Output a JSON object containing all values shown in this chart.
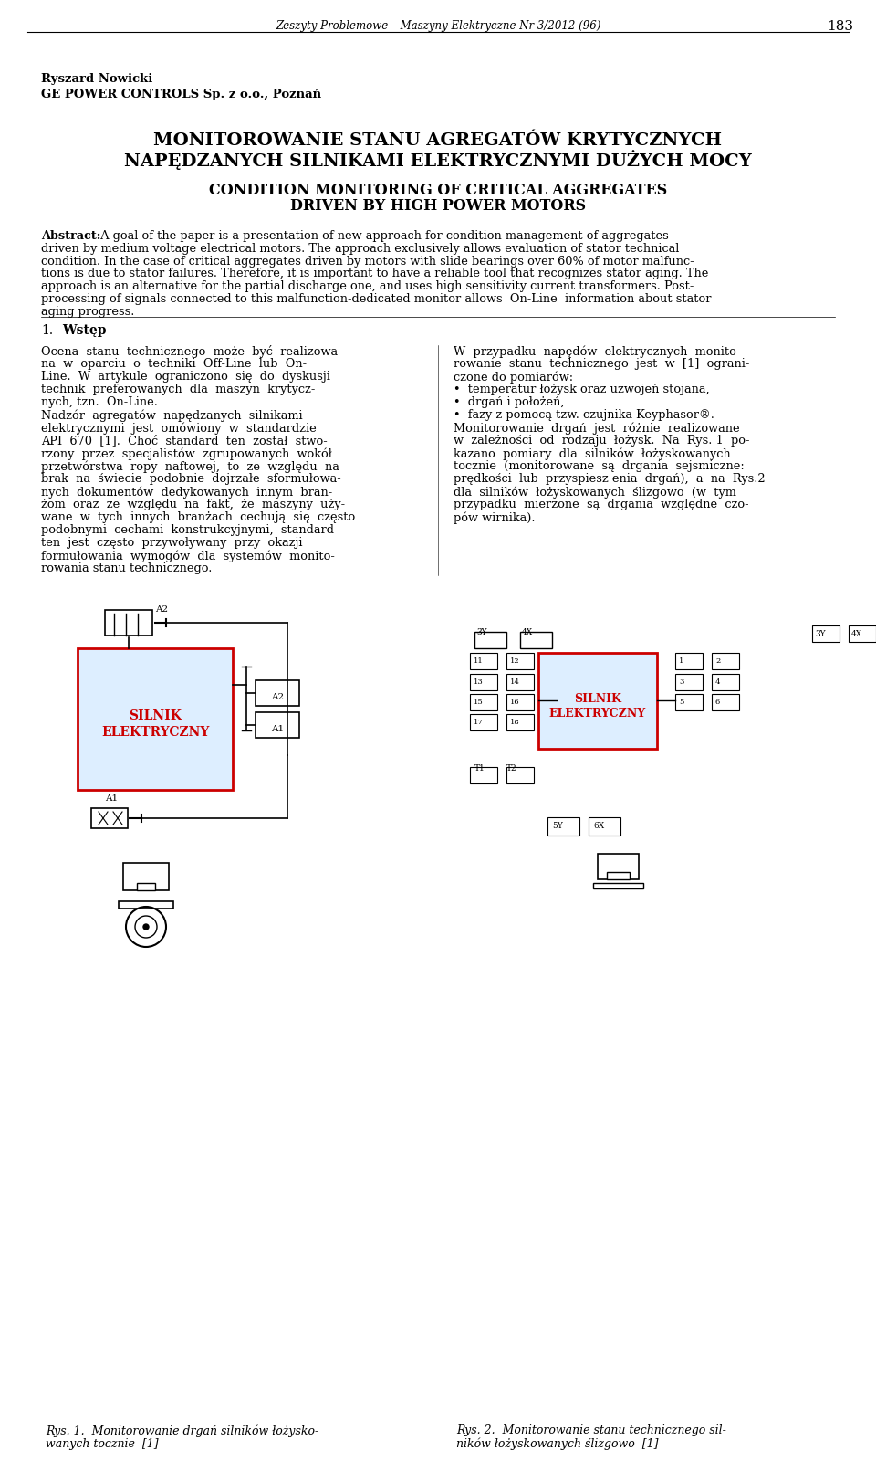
{
  "background_color": "#ffffff",
  "header_text": "Zeszyty Problemowe – Maszyny Elektryczne Nr 3/2012 (96)",
  "header_page": "183",
  "author_name": "Ryszard Nowicki",
  "author_affil": "GE POWER CONTROLS Sp. z o.o., Poznań",
  "title_pl_1": "MONITOROWANIE STANU AGREGATÓW KRYTYCZNYCH",
  "title_pl_2": "NAPĘDZANYCH SILNIKAMI ELEKTRYCZNYMI DUŻYCH MOCY",
  "title_en_1": "CONDITION MONITORING OF CRITICAL AGGREGATES",
  "title_en_2": "DRIVEN BY HIGH POWER MOTORS",
  "abs_line1": "Abstract:  A goal of the paper is a presentation of new approach for condition management of aggregates",
  "abs_line2": "driven by medium voltage electrical motors. The approach exclusively allows evaluation of stator technical",
  "abs_line3": "condition. In the case of critical aggregates driven by motors with slide bearings over 60% of motor malfunc-",
  "abs_line4": "tions is due to stator failures. Therefore, it is important to have a reliable tool that recognizes stator aging. The",
  "abs_line5": "approach is an alternative for the partial discharge one, and uses high sensitivity current transformers. Post-",
  "abs_line6": "processing of signals connected to this malfunction-dedicated monitor allows On-Line information about stator",
  "abs_line7": "aging progress.",
  "sec_heading": "1.   Wstęp",
  "col1_lines": [
    "Ocena  stanu  technicznego  może  być  realizowa-",
    "na  w  oparciu  o  techniki  Off-Line  lub  On-",
    "Line.  W  artykule  ograniczono  się  do  dyskusji",
    "technik  preferowanych  dla  maszyn  krytycz-",
    "nych, tzn.  On-Line.",
    "Nadzór  agregatów  napędzanych  silnikami",
    "elektrycznymi  jest  omówiony  w  standardzie",
    "API  670  [1].  Choć  standard  ten  został  stwo-",
    "rzony  przez  specjalistów  zgrupowanych  wokół",
    "przetwórstwa  ropy  naftowej,  to  ze  względu  na",
    "brak  na  świecie  podobnie  dojrzałe  sformułowa-",
    "nych  dokumentów  dedykowanych  innym  bran-",
    "żom  oraz  ze  względu  na  fakt,  że  maszyny  uży-",
    "wane  w  tych  innych  branżach  cechują  się  często",
    "podobnymi  cechami  konstrukcyjnymi,  standard",
    "ten  jest  często  przywoływany  przy  okazji",
    "formułowania  wymogów  dla  systemów  monito-",
    "rowania stanu technicznego."
  ],
  "col2_lines": [
    "W  przypadku  napędów  elektrycznych  monito-",
    "rowanie  stanu  technicznego  jest  w  [1]  ograni-",
    "czone do pomiarów:",
    "•  temperatur łożysk oraz uzwojeń stojana,",
    "•  drgań i położeń,",
    "•  fazy z pomocą tzw. czujnika Keyphasor®.",
    "Monitorowanie  drgań  jest  różnie  realizowane",
    "w  zależności  od  rodzaju  łożysk.  Na  Rys. 1  po-",
    "kazano  pomiary  dla  silników  łożyskowanych",
    "tocznie  (monitorowane  są  drgania  sejsmiczne:",
    "prędkości  lub  przyspiesz enia  drgań),  a  na  Rys.2",
    "dla  silników  łożyskowanych  ślizgowo  (w  tym",
    "przypadku  mierzone  są  drgania  względne  czo-",
    "pów wirnika)."
  ],
  "fig1_cap1": "Rys. 1.  Monitorowanie drgań silników łożysko-",
  "fig1_cap2": "wanych tocznie  [1]",
  "fig2_cap1": "Rys. 2.  Monitorowanie stanu technicznego sil-",
  "fig2_cap2": "ników łożyskowanych ślizgowo  [1]",
  "motor_label1": "SILNIK",
  "motor_label2": "ELEKTRYCZNY",
  "motor_color": "#cc0000",
  "motor_fill": "#ddeeff"
}
